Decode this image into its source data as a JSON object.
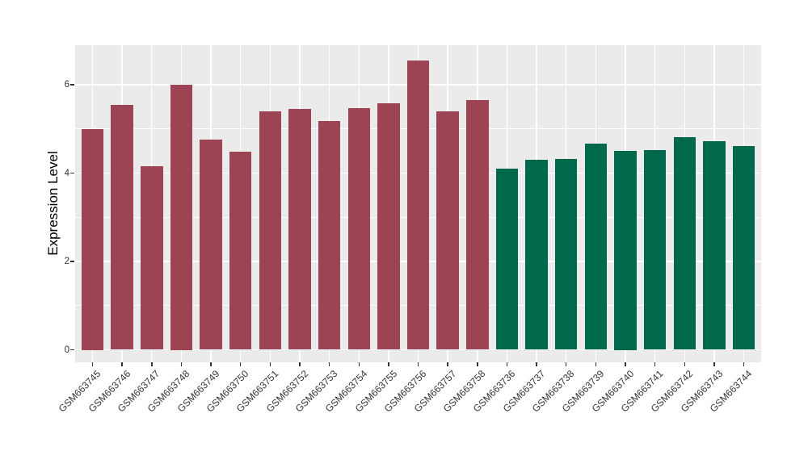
{
  "chart_data": {
    "type": "bar",
    "title": "",
    "xlabel": "",
    "ylabel": "Expression Level",
    "ylim": [
      0,
      6.9
    ],
    "yticks": [
      0,
      2,
      4,
      6
    ],
    "minor_yticks": [
      1,
      3,
      5
    ],
    "grid": "on",
    "legend_position": "none",
    "panel_background": "#EBEBEB",
    "gridline_color": "#FFFFFF",
    "axis_text_color": "#333333",
    "categories": [
      "GSM663745",
      "GSM663746",
      "GSM663747",
      "GSM663748",
      "GSM663749",
      "GSM663750",
      "GSM663751",
      "GSM663752",
      "GSM663753",
      "GSM663754",
      "GSM663755",
      "GSM663756",
      "GSM663757",
      "GSM663758",
      "GSM663736",
      "GSM663737",
      "GSM663738",
      "GSM663739",
      "GSM663740",
      "GSM663741",
      "GSM663742",
      "GSM663743",
      "GSM663744"
    ],
    "values": [
      5.0,
      5.55,
      4.16,
      6.0,
      4.76,
      4.48,
      5.4,
      5.46,
      5.18,
      5.47,
      5.58,
      6.55,
      5.4,
      5.66,
      4.1,
      4.3,
      4.32,
      4.67,
      4.5,
      4.52,
      4.82,
      4.72,
      4.61
    ],
    "groups": [
      0,
      0,
      0,
      0,
      0,
      0,
      0,
      0,
      0,
      0,
      0,
      0,
      0,
      0,
      1,
      1,
      1,
      1,
      1,
      1,
      1,
      1,
      1
    ],
    "group_colors": [
      "#9C4453",
      "#01694B"
    ]
  }
}
